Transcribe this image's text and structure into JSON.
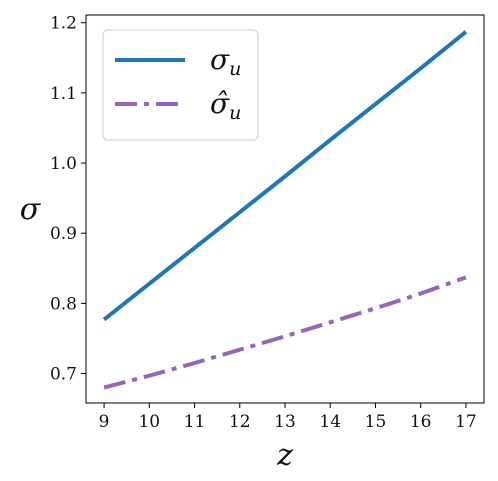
{
  "chart_data": {
    "type": "line",
    "xlabel": "z",
    "ylabel": "σ",
    "x": [
      9,
      10,
      11,
      12,
      13,
      14,
      15,
      16,
      17
    ],
    "xlim": [
      8.6,
      17.4
    ],
    "ylim": [
      0.658,
      1.211
    ],
    "xticks": [
      "9",
      "10",
      "11",
      "12",
      "13",
      "14",
      "15",
      "16",
      "17"
    ],
    "yticks": [
      "0.7",
      "0.8",
      "0.9",
      "1.0",
      "1.1",
      "1.2"
    ],
    "grid": false,
    "legend_position": "top-left",
    "series": [
      {
        "name": "σ_u",
        "symbol": "σ",
        "subscript": "u",
        "style": "solid",
        "color": "#1f77b4",
        "values": [
          0.777,
          0.828,
          0.879,
          0.93,
          0.981,
          1.033,
          1.084,
          1.135,
          1.187
        ]
      },
      {
        "name": "σ̂_u",
        "symbol": "σ̂",
        "subscript": "u",
        "style": "dashdot",
        "color": "#9467bd",
        "values": [
          0.68,
          0.697,
          0.715,
          0.734,
          0.753,
          0.773,
          0.793,
          0.814,
          0.837
        ]
      }
    ]
  }
}
